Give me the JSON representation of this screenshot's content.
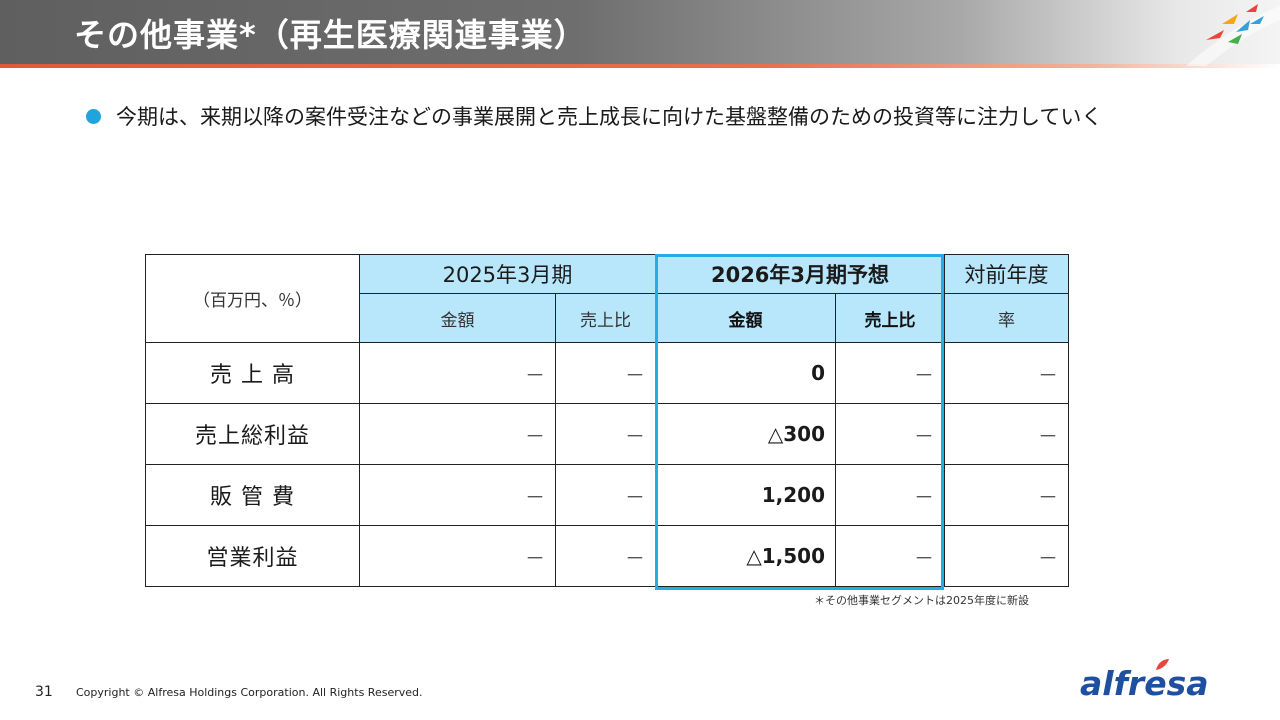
{
  "header": {
    "title": "その他事業*（再生医療関連事業）"
  },
  "bullet": {
    "text": "今期は、来期以降の案件受注などの事業展開と売上成長に向けた基盤整備のための投資等に注力していく"
  },
  "table": {
    "unit_label": "（百万円、％）",
    "period_prev": "2025年3月期",
    "period_forecast": "2026年3月期予想",
    "yoy_label": "対前年度",
    "sub_amount": "金額",
    "sub_ratio": "売上比",
    "sub_rate": "率",
    "rows": [
      {
        "label": "売 上 高",
        "prev_amount": "－",
        "prev_ratio": "－",
        "fc_amount": "0",
        "fc_ratio": "－",
        "yoy": "－"
      },
      {
        "label": "売上総利益",
        "prev_amount": "－",
        "prev_ratio": "－",
        "fc_amount": "△300",
        "fc_ratio": "－",
        "yoy": "－"
      },
      {
        "label": "販 管 費",
        "prev_amount": "－",
        "prev_ratio": "－",
        "fc_amount": "1,200",
        "fc_ratio": "－",
        "yoy": "－"
      },
      {
        "label": "営業利益",
        "prev_amount": "－",
        "prev_ratio": "－",
        "fc_amount": "△1,500",
        "fc_ratio": "－",
        "yoy": "－"
      }
    ]
  },
  "footnote": "＊その他事業セグメントは2025年度に新設",
  "footer": {
    "page_number": "31",
    "copyright": "Copyright © Alfresa Holdings Corporation. All Rights Reserved.",
    "logo_text": "alfresa"
  },
  "colors": {
    "accent_blue": "#22ade6",
    "header_cell_bg": "#b8e6fa",
    "brand_navy": "#1e4fa0",
    "title_underline": "#e05a3a"
  }
}
